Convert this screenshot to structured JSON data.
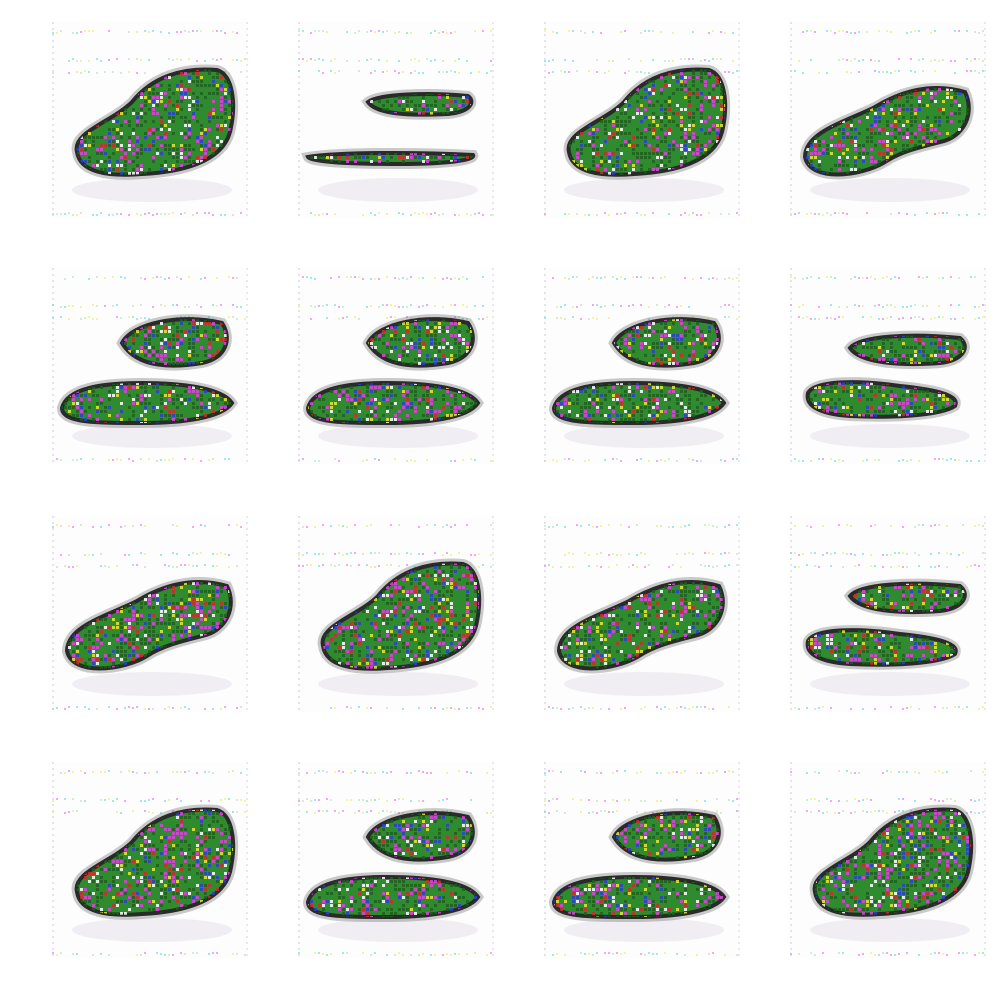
{
  "figure": {
    "description_kind": "grid of generated sample images",
    "rows": 4,
    "cols": 4
  },
  "palette": {
    "background": "#ffffff",
    "tile_background": "#fcfcfc",
    "body_green": "#2e8b2e",
    "body_dark_green": "#1f5f1f",
    "outline": "#2a2a2a",
    "noise_magenta": "#e040e0",
    "noise_cyan": "#30d0d0",
    "noise_yellow": "#e6e632",
    "noise_blue": "#2a40d0",
    "noise_red": "#d02a2a"
  },
  "tiles": [
    {
      "index": 1,
      "pattern": "large-blob"
    },
    {
      "index": 2,
      "pattern": "two-thin-streaks"
    },
    {
      "index": 3,
      "pattern": "large-blob"
    },
    {
      "index": 4,
      "pattern": "noisy-blob"
    },
    {
      "index": 5,
      "pattern": "two-objects"
    },
    {
      "index": 6,
      "pattern": "two-objects"
    },
    {
      "index": 7,
      "pattern": "two-objects"
    },
    {
      "index": 8,
      "pattern": "two-streaks"
    },
    {
      "index": 9,
      "pattern": "noisy-blob"
    },
    {
      "index": 10,
      "pattern": "large-blob"
    },
    {
      "index": 11,
      "pattern": "noisy-blob"
    },
    {
      "index": 12,
      "pattern": "two-streaks"
    },
    {
      "index": 13,
      "pattern": "large-blob"
    },
    {
      "index": 14,
      "pattern": "two-objects"
    },
    {
      "index": 15,
      "pattern": "two-objects"
    },
    {
      "index": 16,
      "pattern": "large-blob"
    }
  ]
}
